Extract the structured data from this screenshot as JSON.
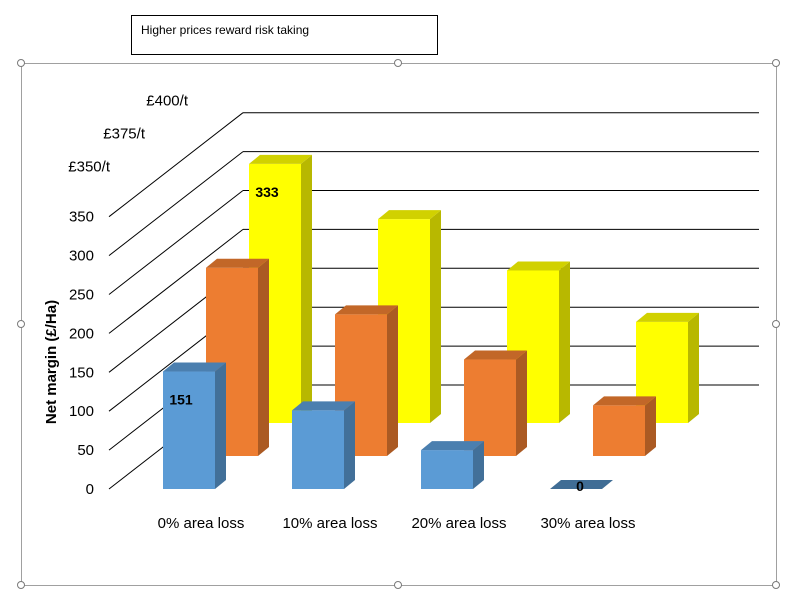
{
  "textbox": {
    "text": "Higher prices reward risk taking"
  },
  "chart_data": {
    "type": "bar",
    "title": "",
    "xlabel": "",
    "ylabel": "Net margin (£/Ha)",
    "categories": [
      "0% area loss",
      "10% area loss",
      "20% area loss",
      "30% area loss"
    ],
    "y_ticks": [
      0,
      50,
      100,
      150,
      200,
      250,
      300,
      350
    ],
    "ylim": [
      0,
      350
    ],
    "grid": true,
    "series": [
      {
        "name": "£350/t",
        "color": "#5B9BD5",
        "values": [
          151,
          101,
          50,
          0
        ]
      },
      {
        "name": "£375/t",
        "color": "#ED7D31",
        "values": [
          242,
          182,
          124,
          65
        ]
      },
      {
        "name": "£400/t",
        "color": "#FFFF00",
        "values": [
          333,
          262,
          196,
          130
        ]
      }
    ],
    "data_labels": [
      {
        "series": "£350/t",
        "category": "0% area loss",
        "text": "151"
      },
      {
        "series": "£350/t",
        "category": "30% area loss",
        "text": "0"
      },
      {
        "series": "£400/t",
        "category": "0% area loss",
        "text": "333"
      }
    ]
  }
}
